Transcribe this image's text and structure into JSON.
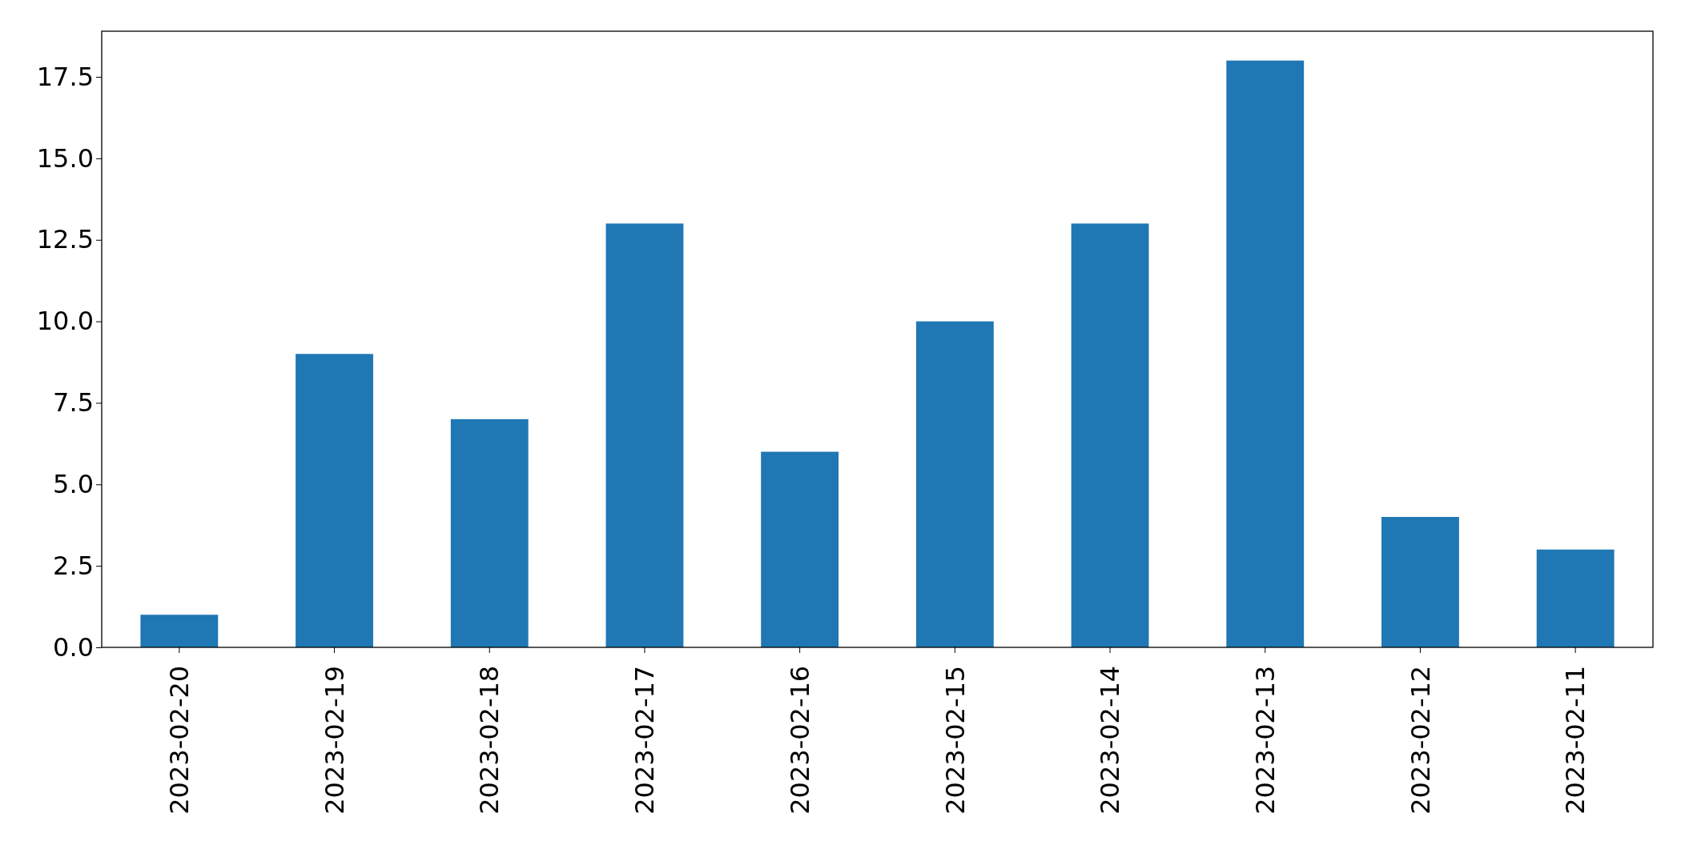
{
  "chart_data": {
    "type": "bar",
    "categories": [
      "2023-02-20",
      "2023-02-19",
      "2023-02-18",
      "2023-02-17",
      "2023-02-16",
      "2023-02-15",
      "2023-02-14",
      "2023-02-13",
      "2023-02-12",
      "2023-02-11"
    ],
    "values": [
      1,
      9,
      7,
      13,
      6,
      10,
      13,
      18,
      4,
      3
    ],
    "color": "#1f77b4",
    "ylim": [
      0,
      18.9
    ],
    "yticks": [
      {
        "value": 0,
        "label": "0.0"
      },
      {
        "value": 2.5,
        "label": "2.5"
      },
      {
        "value": 5,
        "label": "5.0"
      },
      {
        "value": 7.5,
        "label": "7.5"
      },
      {
        "value": 10,
        "label": "10.0"
      },
      {
        "value": 12.5,
        "label": "12.5"
      },
      {
        "value": 15,
        "label": "15.0"
      },
      {
        "value": 17.5,
        "label": "17.5"
      }
    ],
    "grid": false
  }
}
